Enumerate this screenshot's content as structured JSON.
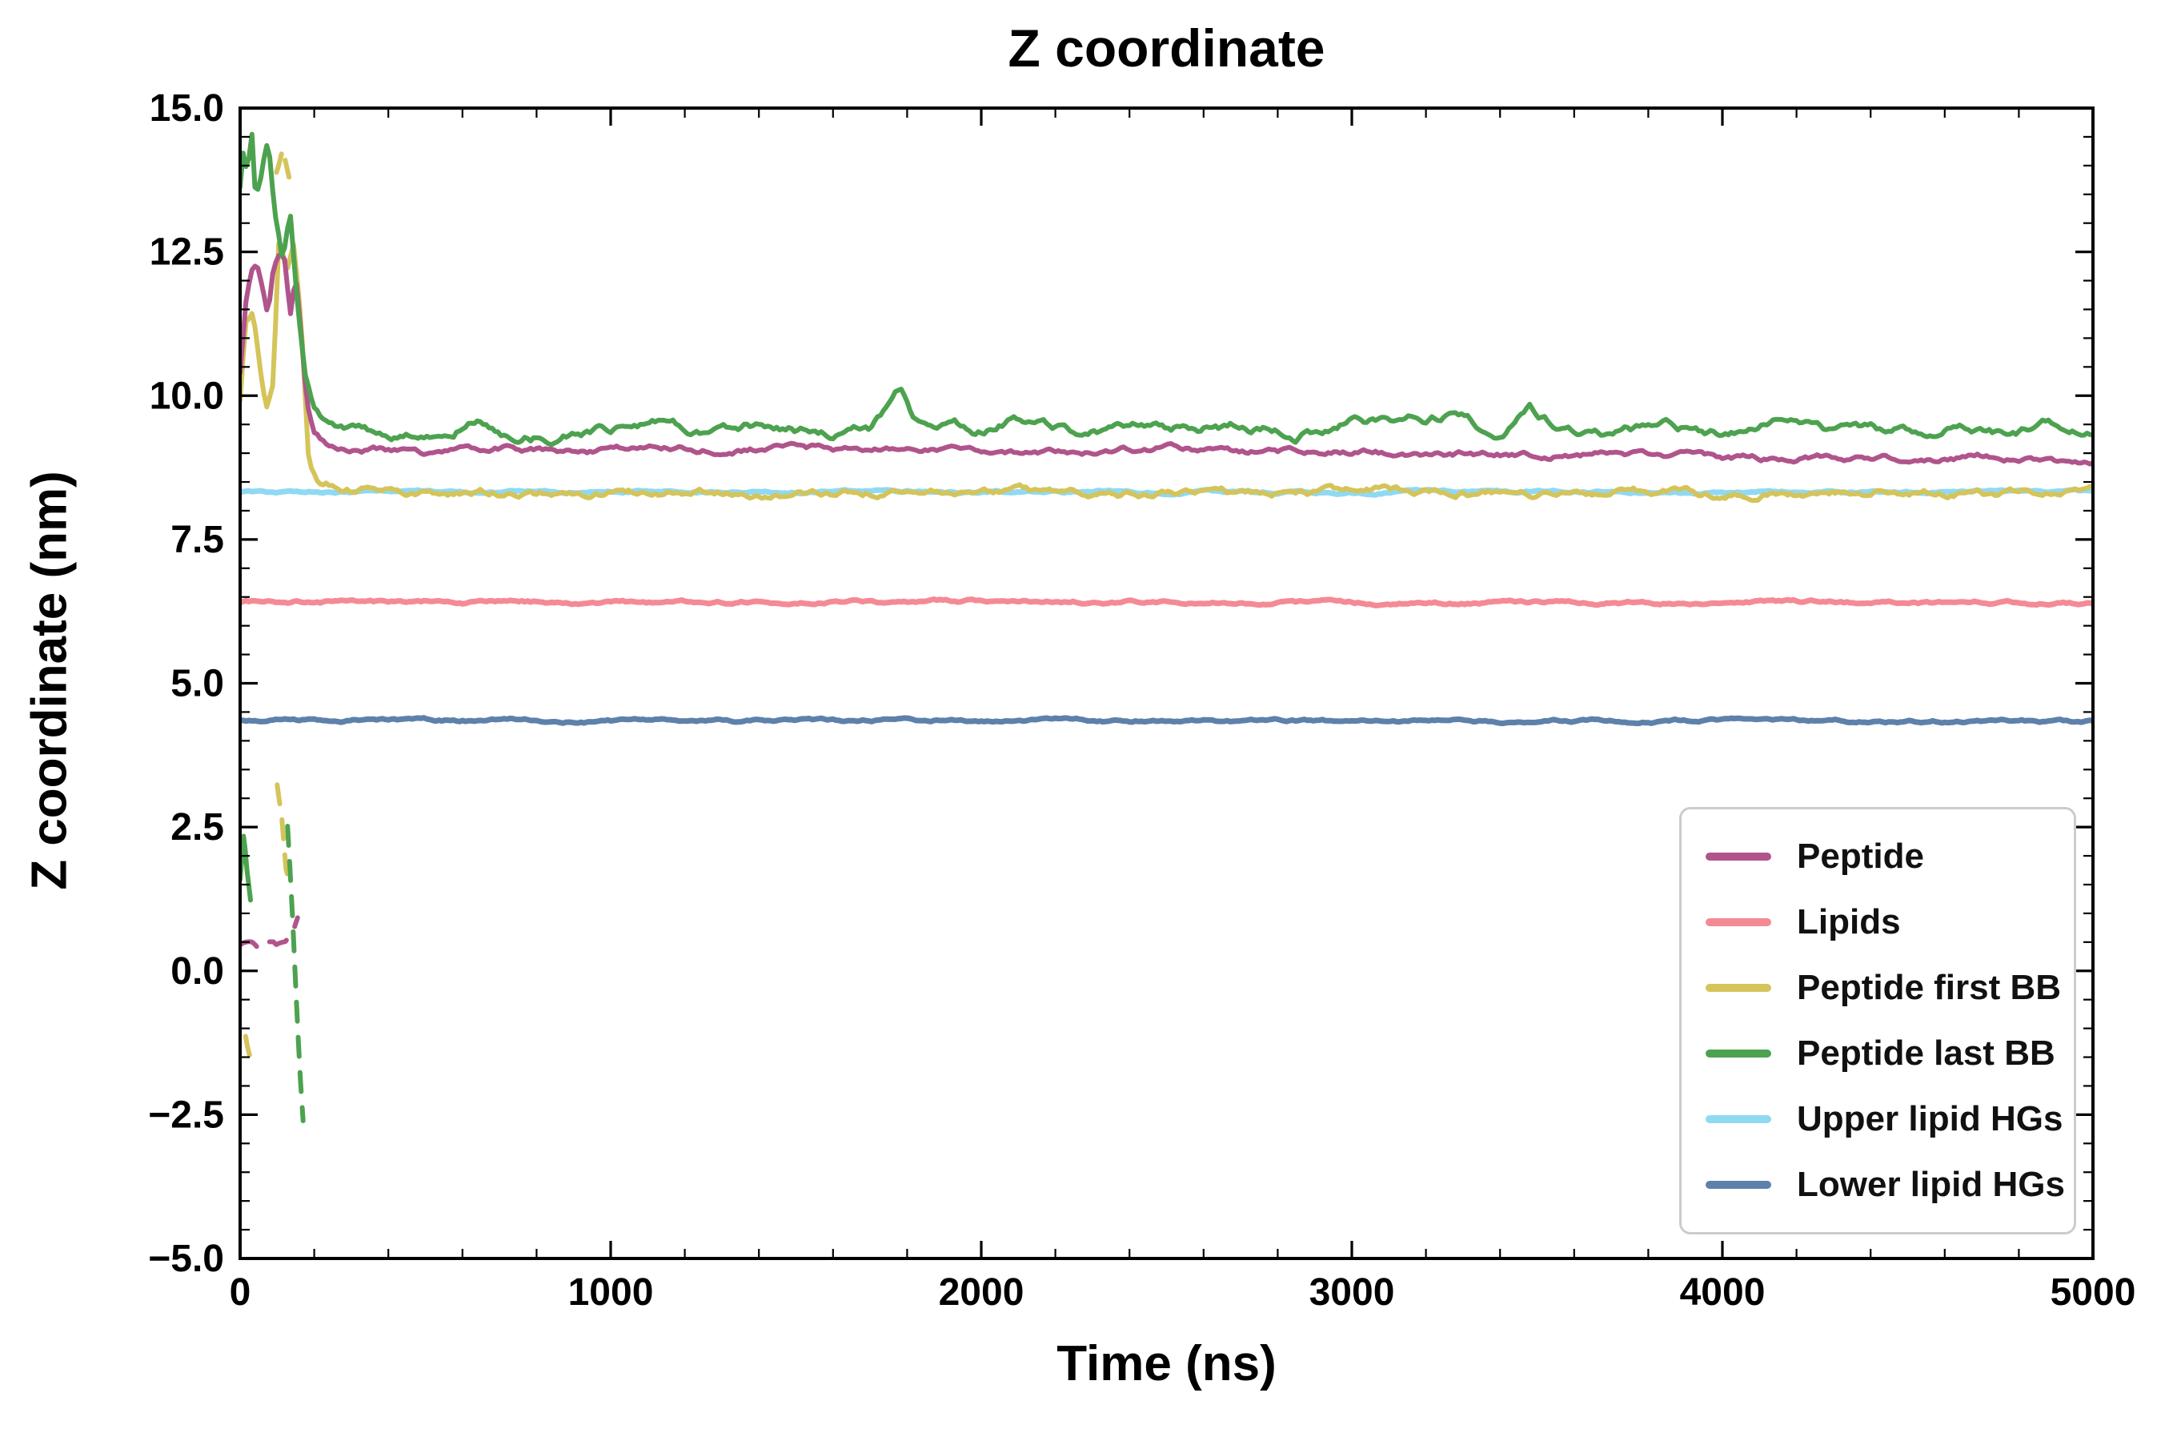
{
  "chart_data": {
    "type": "line",
    "title": "Z coordinate",
    "xlabel": "Time (ns)",
    "ylabel": "Z coordinate (nm)",
    "xlim": [
      0,
      5000
    ],
    "ylim": [
      -5.0,
      15.0
    ],
    "xticks": [
      0,
      1000,
      2000,
      3000,
      4000,
      5000
    ],
    "xtick_labels": [
      "0",
      "1000",
      "2000",
      "3000",
      "4000",
      "5000"
    ],
    "yticks": [
      -5.0,
      -2.5,
      0.0,
      2.5,
      5.0,
      7.5,
      10.0,
      12.5,
      15.0
    ],
    "ytick_labels": [
      "−5.0",
      "−2.5",
      "0.0",
      "2.5",
      "5.0",
      "7.5",
      "10.0",
      "12.5",
      "15.0"
    ],
    "x_minor_step": 200,
    "y_minor_step": 0.5,
    "grid": false,
    "legend_position": "lower right",
    "series": [
      {
        "name": "Peptide",
        "color": "#b0548c",
        "linewidth": 6,
        "noise": 0.08,
        "seed": 11,
        "zorder": 5,
        "segments": [
          {
            "dash": false,
            "points": [
              [
                0,
                10.4
              ],
              [
                15,
                11.6
              ],
              [
                30,
                12.2
              ],
              [
                45,
                12.3
              ],
              [
                60,
                11.9
              ],
              [
                75,
                11.4
              ],
              [
                90,
                12.3
              ],
              [
                105,
                12.5
              ],
              [
                120,
                12.4
              ],
              [
                135,
                11.4
              ],
              [
                150,
                12.1
              ],
              [
                165,
                11.0
              ],
              [
                180,
                9.9
              ],
              [
                200,
                9.4
              ],
              [
                230,
                9.2
              ],
              [
                300,
                9.1
              ],
              [
                400,
                9.05
              ],
              [
                500,
                9.0
              ],
              [
                700,
                9.1
              ],
              [
                900,
                9.0
              ],
              [
                1100,
                9.1
              ],
              [
                1300,
                9.05
              ],
              [
                1500,
                9.1
              ],
              [
                1700,
                9.05
              ],
              [
                1900,
                9.1
              ],
              [
                2100,
                9.0
              ],
              [
                2300,
                9.05
              ],
              [
                2500,
                9.1
              ],
              [
                2700,
                9.0
              ],
              [
                2900,
                9.05
              ],
              [
                3100,
                9.0
              ],
              [
                3300,
                9.0
              ],
              [
                3500,
                8.95
              ],
              [
                3700,
                9.0
              ],
              [
                3900,
                8.95
              ],
              [
                4100,
                8.9
              ],
              [
                4300,
                8.95
              ],
              [
                4500,
                8.9
              ],
              [
                4700,
                8.95
              ],
              [
                4850,
                8.85
              ],
              [
                5000,
                8.85
              ]
            ]
          },
          {
            "dash": true,
            "points": [
              [
                0,
                0.45
              ],
              [
                25,
                0.5
              ],
              [
                50,
                0.4
              ],
              [
                75,
                0.55
              ],
              [
                100,
                0.45
              ],
              [
                125,
                0.55
              ],
              [
                145,
                0.8
              ],
              [
                155,
                0.95
              ]
            ]
          }
        ]
      },
      {
        "name": "Lipids",
        "color": "#f48a95",
        "linewidth": 7,
        "noise": 0.045,
        "seed": 22,
        "zorder": 3,
        "segments": [
          {
            "dash": false,
            "points": [
              [
                0,
                6.42
              ],
              [
                1000,
                6.41
              ],
              [
                2000,
                6.42
              ],
              [
                3000,
                6.4
              ],
              [
                4000,
                6.41
              ],
              [
                5000,
                6.4
              ]
            ]
          }
        ]
      },
      {
        "name": "Peptide first BB",
        "color": "#d4c45a",
        "linewidth": 6,
        "noise": 0.1,
        "seed": 33,
        "zorder": 4,
        "segments": [
          {
            "dash": false,
            "points": [
              [
                0,
                9.9
              ],
              [
                15,
                11.3
              ],
              [
                35,
                11.5
              ],
              [
                55,
                10.4
              ],
              [
                70,
                9.7
              ],
              [
                90,
                10.2
              ],
              [
                105,
                12.8
              ],
              [
                125,
                12.1
              ],
              [
                145,
                12.6
              ],
              [
                165,
                11.2
              ],
              [
                185,
                8.9
              ],
              [
                215,
                8.5
              ],
              [
                300,
                8.4
              ],
              [
                500,
                8.35
              ],
              [
                800,
                8.3
              ],
              [
                1200,
                8.35
              ],
              [
                1600,
                8.3
              ],
              [
                2000,
                8.35
              ],
              [
                2400,
                8.3
              ],
              [
                2800,
                8.3
              ],
              [
                3200,
                8.35
              ],
              [
                3600,
                8.3
              ],
              [
                4000,
                8.3
              ],
              [
                4400,
                8.35
              ],
              [
                4800,
                8.3
              ],
              [
                5000,
                8.35
              ]
            ]
          },
          {
            "dash": true,
            "points": [
              [
                98,
                13.9
              ],
              [
                115,
                14.3
              ],
              [
                132,
                13.9
              ]
            ]
          },
          {
            "dash": true,
            "points": [
              [
                15,
                -1.1
              ],
              [
                28,
                -1.5
              ],
              [
                42,
                -1.6
              ]
            ]
          },
          {
            "dash": true,
            "points": [
              [
                100,
                3.2
              ],
              [
                112,
                2.7
              ],
              [
                124,
                1.8
              ],
              [
                136,
                1.5
              ]
            ]
          }
        ]
      },
      {
        "name": "Peptide last BB",
        "color": "#4da24f",
        "linewidth": 6,
        "noise": 0.13,
        "seed": 44,
        "zorder": 6,
        "segments": [
          {
            "dash": false,
            "points": [
              [
                0,
                13.6
              ],
              [
                10,
                14.4
              ],
              [
                20,
                13.8
              ],
              [
                30,
                14.8
              ],
              [
                42,
                13.4
              ],
              [
                58,
                13.9
              ],
              [
                75,
                14.5
              ],
              [
                95,
                13.1
              ],
              [
                115,
                12.3
              ],
              [
                135,
                13.2
              ],
              [
                155,
                11.6
              ],
              [
                175,
                10.3
              ],
              [
                200,
                9.7
              ],
              [
                240,
                9.4
              ],
              [
                350,
                9.3
              ],
              [
                500,
                9.35
              ],
              [
                650,
                9.6
              ],
              [
                700,
                9.35
              ],
              [
                850,
                9.3
              ],
              [
                1000,
                9.45
              ],
              [
                1100,
                9.6
              ],
              [
                1250,
                9.3
              ],
              [
                1400,
                9.5
              ],
              [
                1550,
                9.35
              ],
              [
                1700,
                9.4
              ],
              [
                1780,
                10.15
              ],
              [
                1820,
                9.5
              ],
              [
                2000,
                9.4
              ],
              [
                2100,
                9.6
              ],
              [
                2250,
                9.3
              ],
              [
                2400,
                9.5
              ],
              [
                2550,
                9.4
              ],
              [
                2700,
                9.5
              ],
              [
                2850,
                9.35
              ],
              [
                3000,
                9.55
              ],
              [
                3150,
                9.6
              ],
              [
                3300,
                9.65
              ],
              [
                3380,
                9.3
              ],
              [
                3480,
                9.8
              ],
              [
                3560,
                9.4
              ],
              [
                3700,
                9.3
              ],
              [
                3850,
                9.45
              ],
              [
                4000,
                9.35
              ],
              [
                4150,
                9.5
              ],
              [
                4300,
                9.4
              ],
              [
                4450,
                9.35
              ],
              [
                4600,
                9.45
              ],
              [
                4750,
                9.35
              ],
              [
                4900,
                9.5
              ],
              [
                5000,
                9.3
              ]
            ]
          },
          {
            "dash": false,
            "points": [
              [
                0,
                1.6
              ],
              [
                10,
                2.4
              ],
              [
                18,
                1.8
              ],
              [
                28,
                1.3
              ]
            ]
          },
          {
            "dash": true,
            "points": [
              [
                128,
                2.5
              ],
              [
                140,
                1.2
              ],
              [
                150,
                -0.3
              ],
              [
                160,
                -1.6
              ],
              [
                170,
                -2.6
              ]
            ]
          }
        ]
      },
      {
        "name": "Upper lipid HGs",
        "color": "#8fd9f2",
        "linewidth": 7,
        "noise": 0.035,
        "seed": 55,
        "zorder": 2,
        "segments": [
          {
            "dash": false,
            "points": [
              [
                0,
                8.33
              ],
              [
                2500,
                8.33
              ],
              [
                5000,
                8.32
              ]
            ]
          }
        ]
      },
      {
        "name": "Lower lipid HGs",
        "color": "#5d81ab",
        "linewidth": 7,
        "noise": 0.04,
        "seed": 66,
        "zorder": 2,
        "segments": [
          {
            "dash": false,
            "points": [
              [
                0,
                4.36
              ],
              [
                1000,
                4.35
              ],
              [
                2000,
                4.36
              ],
              [
                3000,
                4.34
              ],
              [
                4000,
                4.35
              ],
              [
                5000,
                4.33
              ]
            ]
          }
        ]
      }
    ]
  }
}
